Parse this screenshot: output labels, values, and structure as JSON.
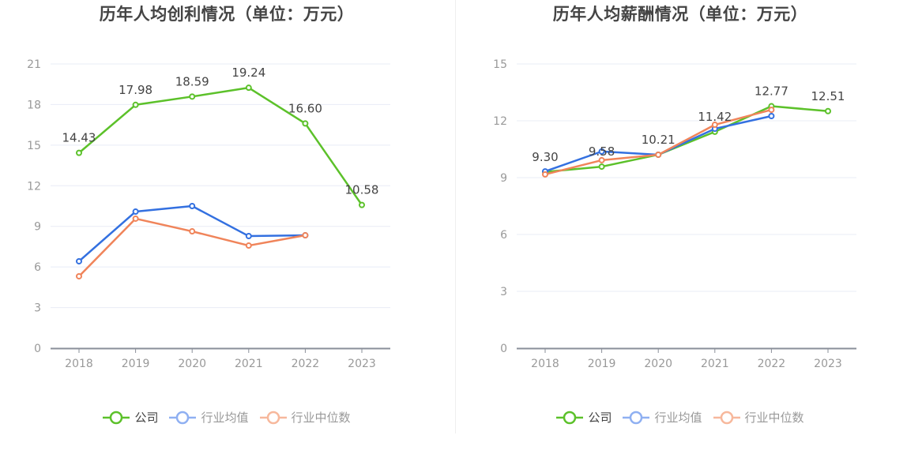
{
  "colors": {
    "company": "#5cc12a",
    "industry_avg": "#3370e0",
    "industry_median": "#f0845a",
    "legend_avg": "#8fb0f2",
    "legend_median": "#f7b89c",
    "grid": "#e8ecf6",
    "axis": "#8a8f99",
    "tick_text": "#999999",
    "label_text": "#444444"
  },
  "legend": {
    "items": [
      {
        "label": "公司",
        "series": "company"
      },
      {
        "label": "行业均值",
        "series": "industry_avg"
      },
      {
        "label": "行业中位数",
        "series": "industry_median"
      }
    ]
  },
  "chart_data": [
    {
      "type": "line",
      "title": "历年人均创利情况（单位：万元）",
      "xlabel": "",
      "ylabel": "",
      "categories": [
        "2018",
        "2019",
        "2020",
        "2021",
        "2022",
        "2023"
      ],
      "ylim": [
        0,
        21
      ],
      "yticks": [
        "0",
        "3",
        "6",
        "9",
        "12",
        "15",
        "18",
        "21"
      ],
      "grid": true,
      "legend_position": "bottom",
      "series": [
        {
          "name": "公司",
          "key": "company",
          "values": [
            14.43,
            17.98,
            18.59,
            19.24,
            16.6,
            10.58
          ],
          "labels": [
            "14.43",
            "17.98",
            "18.59",
            "19.24",
            "16.60",
            "10.58"
          ]
        },
        {
          "name": "行业均值",
          "key": "industry_avg",
          "values": [
            6.42,
            10.09,
            10.5,
            8.28,
            8.34,
            null
          ]
        },
        {
          "name": "行业中位数",
          "key": "industry_median",
          "values": [
            5.31,
            9.57,
            8.63,
            7.58,
            8.34,
            null
          ]
        }
      ]
    },
    {
      "type": "line",
      "title": "历年人均薪酬情况（单位：万元）",
      "xlabel": "",
      "ylabel": "",
      "categories": [
        "2018",
        "2019",
        "2020",
        "2021",
        "2022",
        "2023"
      ],
      "ylim": [
        0,
        15
      ],
      "yticks": [
        "0",
        "3",
        "6",
        "9",
        "12",
        "15"
      ],
      "grid": true,
      "legend_position": "bottom",
      "series": [
        {
          "name": "公司",
          "key": "company",
          "values": [
            9.3,
            9.58,
            10.21,
            11.42,
            12.77,
            12.51
          ],
          "labels": [
            "9.30",
            "9.58",
            "10.21",
            "11.42",
            "12.77",
            "12.51"
          ]
        },
        {
          "name": "行业均值",
          "key": "industry_avg",
          "values": [
            9.33,
            10.38,
            10.21,
            11.58,
            12.25,
            null
          ]
        },
        {
          "name": "行业中位数",
          "key": "industry_median",
          "values": [
            9.17,
            9.92,
            10.21,
            11.79,
            12.58,
            null
          ]
        }
      ]
    }
  ]
}
